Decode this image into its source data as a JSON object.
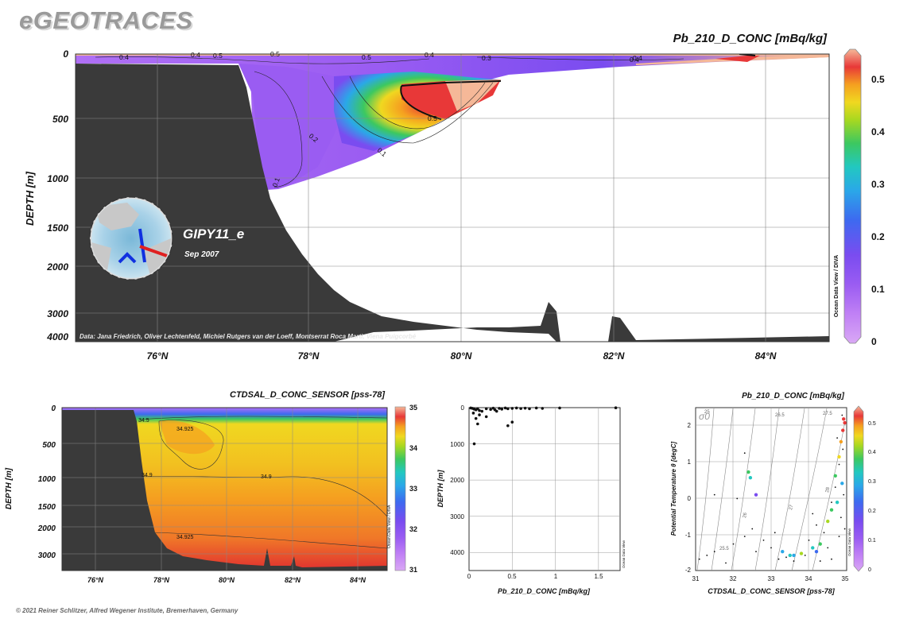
{
  "brand": "eGEOTRACES",
  "footer": "© 2021 Reiner Schlitzer, Alfred Wegener Institute, Bremerhaven, Germany",
  "colors": {
    "land": "#3a3a3a",
    "ramp": [
      "#d9a8f5",
      "#b070f5",
      "#7a4cf0",
      "#3d6af0",
      "#2aa8e8",
      "#22c8c0",
      "#3cc860",
      "#a8d820",
      "#f0d820",
      "#f5a020",
      "#e83838",
      "#f5b898"
    ]
  },
  "main": {
    "title": "Pb_210_D_CONC [mBq/kg]",
    "ylabel": "DEPTH [m]",
    "yticks": [
      "0",
      "500",
      "1000",
      "1500",
      "2000",
      "3000",
      "4000"
    ],
    "xticks": [
      "76°N",
      "78°N",
      "80°N",
      "82°N",
      "84°N"
    ],
    "colorbar_ticks": [
      "0.5",
      "0.4",
      "0.3",
      "0.2",
      "0.1",
      "0"
    ],
    "contour_labels": [
      "0.4",
      "0.4",
      "0.5",
      "0.5",
      "0.5",
      "0.4",
      "0.3",
      "0.4",
      "0.2",
      "0.5",
      "0.1",
      "0.1",
      "0.4"
    ],
    "station": "GIPY11_e",
    "date": "Sep 2007",
    "credit": "Data: Jana Friedrich, Oliver Lechtenfeld, Michiel Rutgers van der Loeff, Montserrat Roca Marti, Viena Puigcorbé",
    "odv": "Ocean Data View / DIVA"
  },
  "sal": {
    "title": "CTDSAL_D_CONC_SENSOR [pss-78]",
    "ylabel": "DEPTH [m]",
    "yticks": [
      "0",
      "500",
      "1000",
      "1500",
      "2000",
      "3000"
    ],
    "xticks": [
      "76°N",
      "78°N",
      "80°N",
      "82°N",
      "84°N"
    ],
    "colorbar_ticks": [
      "35",
      "34",
      "33",
      "32",
      "31"
    ],
    "contour_labels": [
      "34.925",
      "34.9",
      "34.9",
      "34.925",
      "34.5"
    ],
    "odv": "Ocean Data View / DIVA"
  },
  "scatter": {
    "ylabel": "DEPTH [m]",
    "xlabel": "Pb_210_D_CONC [mBq/kg]",
    "xticks": [
      "0",
      "0.5",
      "1",
      "1.5"
    ],
    "yticks": [
      "0",
      "1000",
      "2000",
      "3000",
      "4000"
    ],
    "odv": "Ocean Data View",
    "chart_data": {
      "type": "scatter",
      "xlabel": "Pb_210_D_CONC [mBq/kg]",
      "ylabel": "DEPTH [m]",
      "xlim": [
        0,
        1.75
      ],
      "ylim": [
        4500,
        0
      ],
      "points": [
        [
          0.02,
          10
        ],
        [
          0.04,
          20
        ],
        [
          0.06,
          40
        ],
        [
          0.08,
          60
        ],
        [
          0.1,
          30
        ],
        [
          0.12,
          80
        ],
        [
          0.15,
          100
        ],
        [
          0.2,
          30
        ],
        [
          0.25,
          50
        ],
        [
          0.28,
          15
        ],
        [
          0.3,
          60
        ],
        [
          0.32,
          100
        ],
        [
          0.35,
          20
        ],
        [
          0.38,
          40
        ],
        [
          0.42,
          10
        ],
        [
          0.45,
          30
        ],
        [
          0.5,
          20
        ],
        [
          0.55,
          10
        ],
        [
          0.6,
          25
        ],
        [
          0.65,
          15
        ],
        [
          0.7,
          30
        ],
        [
          0.78,
          10
        ],
        [
          0.85,
          20
        ],
        [
          1.05,
          10
        ],
        [
          1.7,
          5
        ],
        [
          0.05,
          150
        ],
        [
          0.08,
          300
        ],
        [
          0.1,
          450
        ],
        [
          0.2,
          250
        ],
        [
          0.5,
          400
        ],
        [
          0.45,
          500
        ],
        [
          0.06,
          1000
        ],
        [
          0.12,
          200
        ]
      ]
    }
  },
  "ts": {
    "title": "Pb_210_D_CONC [mBq/kg]",
    "ylabel": "Potential Temperature θ [degC]",
    "xlabel": "CTDSAL_D_CONC_SENSOR [pss-78]",
    "xticks": [
      "31",
      "32",
      "33",
      "34",
      "35"
    ],
    "yticks": [
      "2",
      "1",
      "0",
      "-1",
      "-2"
    ],
    "colorbar_ticks": [
      "0.5",
      "0.4",
      "0.3",
      "0.2",
      "0.1",
      "0"
    ],
    "sigma": "σ0",
    "isopycnals": [
      "25",
      "25.5",
      "26",
      "26.5",
      "27",
      "27.5",
      "28"
    ],
    "odv": "Ocean Data View",
    "chart_data": {
      "type": "scatter",
      "xlabel": "CTDSAL_D_CONC_SENSOR [pss-78]",
      "ylabel": "Potential Temperature θ [degC]",
      "xlim": [
        31,
        35
      ],
      "ylim": [
        -2,
        2.3
      ],
      "colored_points": [
        [
          32.4,
          0.6,
          0.3
        ],
        [
          32.45,
          0.45,
          0.25
        ],
        [
          32.6,
          0,
          0.1
        ],
        [
          33.6,
          -1.6,
          0.2
        ],
        [
          33.8,
          -1.55,
          0.35
        ],
        [
          34.1,
          -1.4,
          0.25
        ],
        [
          34.3,
          -1.3,
          0.3
        ],
        [
          34.5,
          -0.7,
          0.35
        ],
        [
          34.7,
          0.5,
          0.3
        ],
        [
          34.8,
          1.0,
          0.4
        ],
        [
          34.85,
          1.4,
          0.45
        ],
        [
          34.9,
          1.7,
          0.5
        ],
        [
          34.92,
          2.0,
          0.5
        ],
        [
          34.88,
          0.3,
          0.2
        ],
        [
          34.75,
          -0.2,
          0.25
        ],
        [
          34.6,
          -0.4,
          0.3
        ],
        [
          34.2,
          -1.5,
          0.15
        ],
        [
          33.3,
          -1.5,
          0.2
        ],
        [
          33.5,
          -1.6,
          0.25
        ],
        [
          34.95,
          1.9,
          0.5
        ]
      ]
    }
  }
}
